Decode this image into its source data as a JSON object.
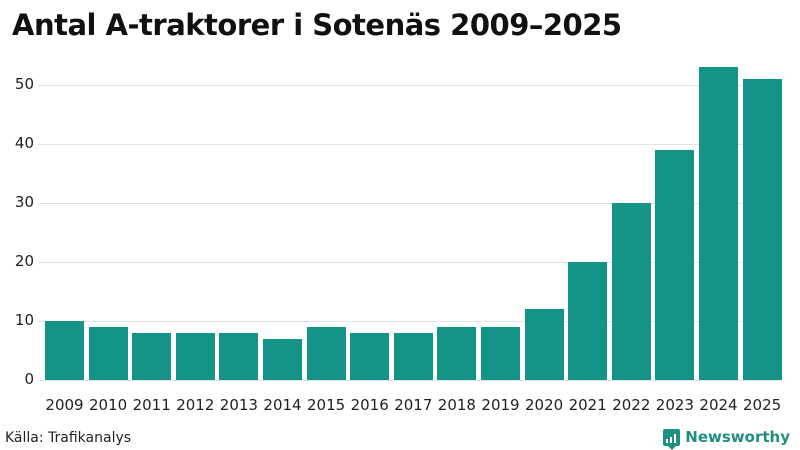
{
  "title": "Antal A-traktorer i Sotenäs 2009–2025",
  "source": "Källa: Trafikanalys",
  "brand": {
    "label": "Newsworthy",
    "icon": "bar-chart-speech-icon",
    "color": "#1f8f80"
  },
  "colors": {
    "bar": "#149486",
    "grid": "#e3e3ea"
  },
  "chart_data": {
    "type": "bar",
    "title": "Antal A-traktorer i Sotenäs 2009–2025",
    "xlabel": "",
    "ylabel": "",
    "categories": [
      "2009",
      "2010",
      "2011",
      "2012",
      "2013",
      "2014",
      "2015",
      "2016",
      "2017",
      "2018",
      "2019",
      "2020",
      "2021",
      "2022",
      "2023",
      "2024",
      "2025"
    ],
    "values": [
      10,
      9,
      8,
      8,
      8,
      7,
      9,
      8,
      8,
      9,
      9,
      12,
      20,
      30,
      39,
      53,
      51
    ],
    "ylim": [
      0,
      55
    ],
    "yticks": [
      0,
      10,
      20,
      30,
      40,
      50
    ],
    "grid": true,
    "legend": null
  }
}
